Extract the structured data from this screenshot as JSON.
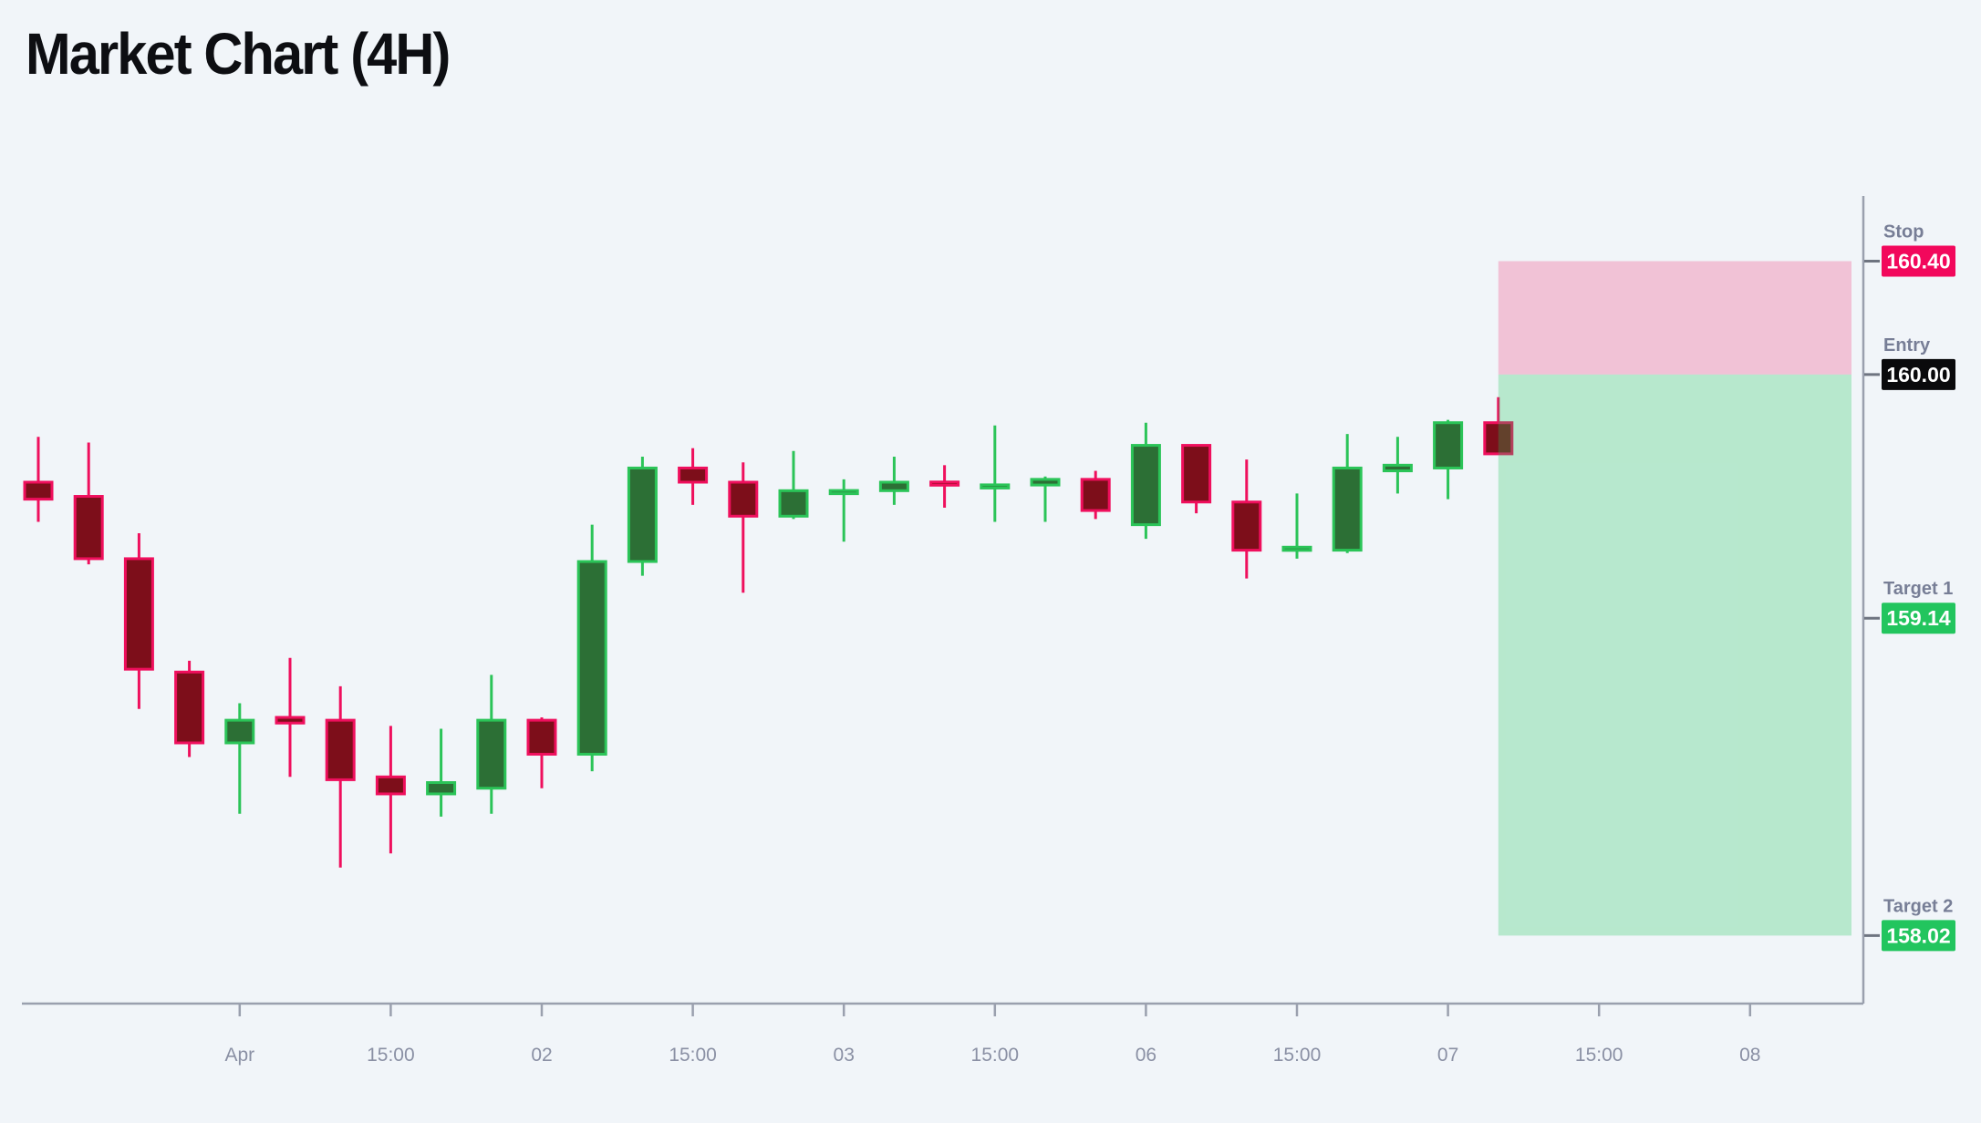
{
  "title": "Market Chart (4H)",
  "colors": {
    "background": "#f1f5f9",
    "title_color": "#0d0e12",
    "bull_border": "#2bc458",
    "bull_fill": "#2c6f35",
    "bear_border": "#ef0f5d",
    "bear_fill": "#7d0e1a",
    "stop_zone_fill": "rgba(240,15,93,0.22)",
    "target_zone_fill": "rgba(34,197,94,0.28)",
    "axis_line": "#9aa0ae",
    "axis_tick": "#6e7480",
    "axis_text": "#8a90a4",
    "label_text": "#777e96",
    "stop_badge_bg": "#f2085c",
    "entry_badge_bg": "#0a0a0c",
    "target_badge_bg": "#22c55e",
    "badge_text": "#ffffff"
  },
  "chart_data": {
    "type": "candlestick",
    "timeframe": "4H",
    "title": "Market Chart (4H)",
    "ylim": [
      157.78,
      160.63
    ],
    "grid": false,
    "legend": false,
    "candles": [
      {
        "o": 159.62,
        "h": 159.78,
        "l": 159.48,
        "c": 159.56,
        "d": "down"
      },
      {
        "o": 159.57,
        "h": 159.76,
        "l": 159.33,
        "c": 159.35,
        "d": "down"
      },
      {
        "o": 159.35,
        "h": 159.44,
        "l": 158.82,
        "c": 158.96,
        "d": "down"
      },
      {
        "o": 158.95,
        "h": 158.99,
        "l": 158.65,
        "c": 158.7,
        "d": "down"
      },
      {
        "o": 158.7,
        "h": 158.84,
        "l": 158.45,
        "c": 158.78,
        "d": "up"
      },
      {
        "o": 158.79,
        "h": 159.0,
        "l": 158.58,
        "c": 158.77,
        "d": "down"
      },
      {
        "o": 158.78,
        "h": 158.9,
        "l": 158.26,
        "c": 158.57,
        "d": "down"
      },
      {
        "o": 158.58,
        "h": 158.76,
        "l": 158.31,
        "c": 158.52,
        "d": "down"
      },
      {
        "o": 158.52,
        "h": 158.75,
        "l": 158.44,
        "c": 158.56,
        "d": "up"
      },
      {
        "o": 158.54,
        "h": 158.94,
        "l": 158.45,
        "c": 158.78,
        "d": "up"
      },
      {
        "o": 158.78,
        "h": 158.79,
        "l": 158.54,
        "c": 158.66,
        "d": "down"
      },
      {
        "o": 158.66,
        "h": 159.47,
        "l": 158.6,
        "c": 159.34,
        "d": "up"
      },
      {
        "o": 159.34,
        "h": 159.71,
        "l": 159.29,
        "c": 159.67,
        "d": "up"
      },
      {
        "o": 159.67,
        "h": 159.74,
        "l": 159.54,
        "c": 159.62,
        "d": "down"
      },
      {
        "o": 159.62,
        "h": 159.69,
        "l": 159.23,
        "c": 159.5,
        "d": "down"
      },
      {
        "o": 159.5,
        "h": 159.73,
        "l": 159.49,
        "c": 159.59,
        "d": "up"
      },
      {
        "o": 159.58,
        "h": 159.63,
        "l": 159.41,
        "c": 159.59,
        "d": "up"
      },
      {
        "o": 159.59,
        "h": 159.71,
        "l": 159.54,
        "c": 159.62,
        "d": "up"
      },
      {
        "o": 159.62,
        "h": 159.68,
        "l": 159.53,
        "c": 159.61,
        "d": "down"
      },
      {
        "o": 159.6,
        "h": 159.82,
        "l": 159.48,
        "c": 159.61,
        "d": "up"
      },
      {
        "o": 159.61,
        "h": 159.64,
        "l": 159.48,
        "c": 159.63,
        "d": "up"
      },
      {
        "o": 159.63,
        "h": 159.66,
        "l": 159.49,
        "c": 159.52,
        "d": "down"
      },
      {
        "o": 159.47,
        "h": 159.83,
        "l": 159.42,
        "c": 159.75,
        "d": "up"
      },
      {
        "o": 159.75,
        "h": 159.75,
        "l": 159.51,
        "c": 159.55,
        "d": "down"
      },
      {
        "o": 159.55,
        "h": 159.7,
        "l": 159.28,
        "c": 159.38,
        "d": "down"
      },
      {
        "o": 159.38,
        "h": 159.58,
        "l": 159.35,
        "c": 159.39,
        "d": "up"
      },
      {
        "o": 159.38,
        "h": 159.79,
        "l": 159.37,
        "c": 159.67,
        "d": "up"
      },
      {
        "o": 159.66,
        "h": 159.78,
        "l": 159.58,
        "c": 159.68,
        "d": "up"
      },
      {
        "o": 159.67,
        "h": 159.84,
        "l": 159.56,
        "c": 159.83,
        "d": "up"
      },
      {
        "o": 159.83,
        "h": 159.92,
        "l": 159.72,
        "c": 159.72,
        "d": "down"
      }
    ],
    "x_tick_labels": [
      {
        "candle_index": 4,
        "label": "Apr"
      },
      {
        "candle_index": 7,
        "label": "15:00"
      },
      {
        "candle_index": 10,
        "label": "02"
      },
      {
        "candle_index": 13,
        "label": "15:00"
      },
      {
        "candle_index": 16,
        "label": "03"
      },
      {
        "candle_index": 19,
        "label": "15:00"
      },
      {
        "candle_index": 22,
        "label": "06"
      },
      {
        "candle_index": 25,
        "label": "15:00"
      },
      {
        "candle_index": 28,
        "label": "07"
      },
      {
        "candle_index": 31,
        "label": "15:00"
      },
      {
        "candle_index": 34,
        "label": "08"
      }
    ],
    "levels": [
      {
        "id": "stop",
        "label": "Stop",
        "price": 160.4,
        "display": "160.40"
      },
      {
        "id": "entry",
        "label": "Entry",
        "price": 160.0,
        "display": "160.00"
      },
      {
        "id": "target1",
        "label": "Target 1",
        "price": 159.14,
        "display": "159.14"
      },
      {
        "id": "target2",
        "label": "Target 2",
        "price": 158.02,
        "display": "158.02"
      }
    ],
    "zones": [
      {
        "id": "stop-zone",
        "from_price": 160.4,
        "to_price": 160.0
      },
      {
        "id": "target-zone",
        "from_price": 160.0,
        "to_price": 158.02
      }
    ]
  }
}
